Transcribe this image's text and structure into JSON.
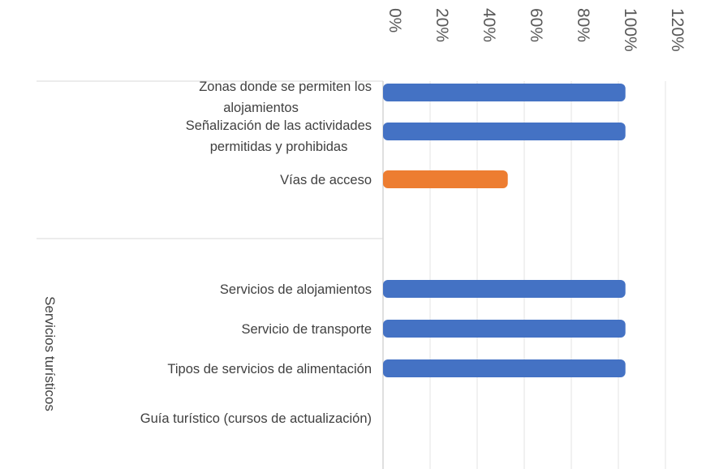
{
  "chart_data": {
    "type": "bar",
    "orientation": "horizontal",
    "x_axis": {
      "position": "top",
      "range": [
        0,
        120
      ],
      "ticks": [
        "0%",
        "20%",
        "40%",
        "60%",
        "80%",
        "100%",
        "120%"
      ],
      "gridlines": true
    },
    "colors": {
      "primary": "#4472C4",
      "highlight": "#ED7D31"
    },
    "groups": [
      {
        "label": "",
        "categories": [
          {
            "label_lines": [
              "Zonas donde se permiten los",
              "alojamientos"
            ],
            "value": 103,
            "color": "#4472C4"
          },
          {
            "label_lines": [
              "Señalización de las actividades",
              "permitidas y prohibidas"
            ],
            "value": 103,
            "color": "#4472C4"
          },
          {
            "label_lines": [
              "Vías de acceso"
            ],
            "value": 53,
            "color": "#ED7D31"
          }
        ]
      },
      {
        "label": "Servicios turísticos",
        "categories": [
          {
            "label_lines": [
              "Servicios de alojamientos"
            ],
            "value": 103,
            "color": "#4472C4"
          },
          {
            "label_lines": [
              "Servicio de transporte"
            ],
            "value": 103,
            "color": "#4472C4"
          },
          {
            "label_lines": [
              "Tipos de servicios de alimentación"
            ],
            "value": 103,
            "color": "#4472C4"
          },
          {
            "label_lines": [
              "Guía turístico (cursos de actualización)"
            ],
            "value": 0,
            "color": "#4472C4"
          }
        ]
      }
    ]
  }
}
